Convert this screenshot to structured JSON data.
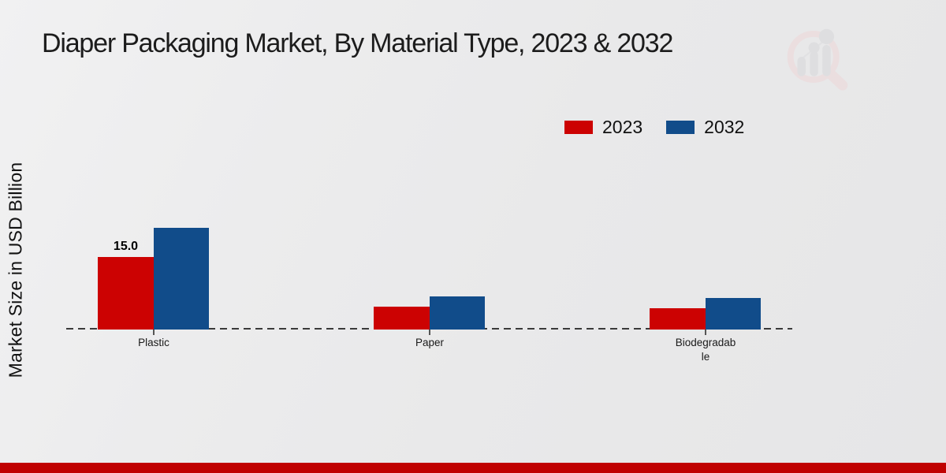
{
  "page": {
    "title": "Diaper Packaging Market, By Material Type, 2023 & 2032"
  },
  "icons": {
    "logo": "magnifier-bar-chart-watermark-logo"
  },
  "colors": {
    "series_2023": "#cc0202",
    "series_2032": "#114c8a",
    "footer_strip": "#c00101",
    "baseline": "#3a3a3a",
    "logo_pink": "#ecd2d4",
    "logo_gray": "#d3d3d7"
  },
  "chart_data": {
    "type": "bar",
    "title": "Diaper Packaging Market, By Material Type, 2023 & 2032",
    "xlabel": "",
    "ylabel": "Market Size in USD Billion",
    "categories": [
      "Plastic",
      "Paper",
      "Biodegradable"
    ],
    "category_label_lines": [
      [
        "Plastic"
      ],
      [
        "Paper"
      ],
      [
        "Biodegradab",
        "le"
      ]
    ],
    "series": [
      {
        "name": "2023",
        "color": "#cc0202",
        "values": [
          15.0,
          4.7,
          4.4
        ],
        "bar_labels": [
          "15.0",
          "",
          ""
        ]
      },
      {
        "name": "2032",
        "color": "#114c8a",
        "values": [
          21.0,
          6.9,
          6.5
        ],
        "bar_labels": [
          "",
          "",
          ""
        ]
      }
    ],
    "value_axis_visible": false,
    "baseline_style": "dashed",
    "grid": false,
    "legend_position": "top-right",
    "ylim": [
      0,
      25
    ]
  }
}
